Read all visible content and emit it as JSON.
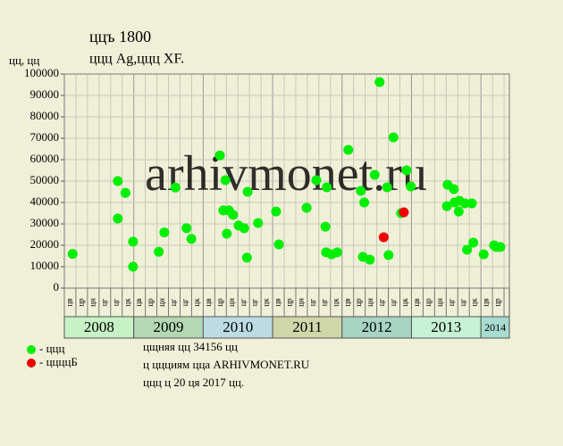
{
  "chart_data": {
    "type": "scatter",
    "title": "ццъ 1800",
    "subtitle": "ццц Ag,ццц XF.",
    "y_label": "цц, цц",
    "watermark": "arhivmonet.ru",
    "ylim": [
      0,
      100000
    ],
    "yticks": [
      0,
      10000,
      20000,
      30000,
      40000,
      50000,
      60000,
      70000,
      80000,
      90000,
      100000
    ],
    "xlim": [
      2008,
      2014.41
    ],
    "years": [
      "2008",
      "2009",
      "2010",
      "2011",
      "2012",
      "2013",
      "2014"
    ],
    "year_colors": [
      "#c6f2c6",
      "#b4d8b4",
      "#bcdce4",
      "#cfd6a8",
      "#a8d4c4",
      "#c6f2d6",
      "#a8dcd0"
    ],
    "period_labels": [
      "цв",
      "цр",
      "цн",
      "цг",
      "цг",
      "цк"
    ],
    "grid": true,
    "series": [
      {
        "name": "- ццц",
        "color": "#00ee00",
        "x": [
          2008.12,
          2008.77,
          2008.77,
          2008.88,
          2008.99,
          2008.99,
          2009.36,
          2009.44,
          2009.6,
          2009.76,
          2009.83,
          2010.24,
          2010.29,
          2010.32,
          2010.34,
          2010.37,
          2010.43,
          2010.51,
          2010.59,
          2010.63,
          2010.64,
          2010.79,
          2011.05,
          2011.09,
          2011.49,
          2011.63,
          2011.76,
          2011.78,
          2011.77,
          2011.85,
          2011.93,
          2012.09,
          2012.27,
          2012.32,
          2012.3,
          2012.4,
          2012.47,
          2012.54,
          2012.65,
          2012.67,
          2012.74,
          2012.85,
          2012.93,
          2012.99,
          2013.51,
          2013.52,
          2013.61,
          2013.62,
          2013.68,
          2013.69,
          2013.77,
          2013.8,
          2013.87,
          2013.89,
          2014.04,
          2014.19,
          2014.22,
          2014.28
        ],
        "values": [
          16000,
          32500,
          50000,
          44500,
          21700,
          10000,
          17000,
          26000,
          47000,
          28000,
          23000,
          62000,
          36300,
          50400,
          25400,
          36300,
          34200,
          29200,
          28000,
          14200,
          45000,
          30400,
          35800,
          20400,
          37500,
          50400,
          28700,
          47100,
          16700,
          15800,
          16700,
          64600,
          45400,
          40000,
          14600,
          13300,
          52900,
          96250,
          47100,
          15400,
          70400,
          35000,
          55000,
          47500,
          38300,
          48300,
          46250,
          40000,
          35800,
          40800,
          39600,
          17900,
          39600,
          21250,
          15800,
          20000,
          19200,
          19200
        ]
      },
      {
        "name": "- ццццБ",
        "color": "#ee0000",
        "x": [
          2012.6,
          2012.89
        ],
        "values": [
          23750,
          35400
        ]
      }
    ],
    "notes": [
      "цщняя цц 34156 цц",
      "ц ццциям цца ARHIVMONET.RU",
      "ццц ц 20 ця 2017 цц."
    ]
  }
}
